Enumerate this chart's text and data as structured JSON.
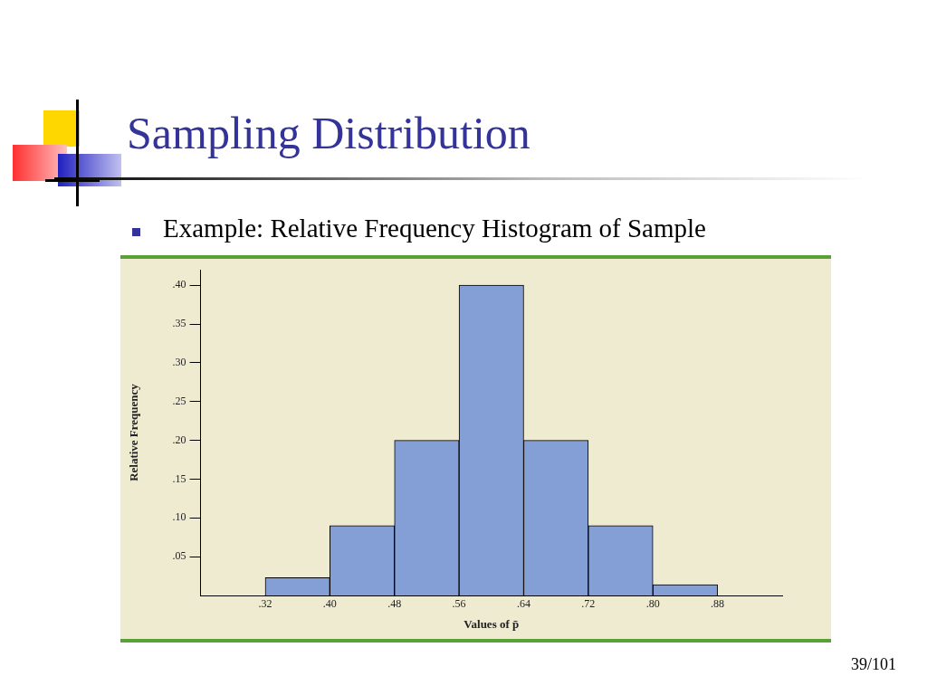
{
  "chart_data": {
    "type": "histogram",
    "title": "Sampling Distribution",
    "subtitle": "Example: Relative Frequency Histogram of Sample",
    "xlabel": "Values of p̄",
    "ylabel": "Relative Frequency",
    "bins": [
      0.32,
      0.4,
      0.48,
      0.56,
      0.64,
      0.72,
      0.8,
      0.88
    ],
    "values": [
      0.023,
      0.09,
      0.2,
      0.4,
      0.2,
      0.09,
      0.014
    ],
    "color": "#849fd6",
    "xlim": [
      0.24,
      0.96
    ],
    "ylim": [
      0,
      0.42
    ],
    "xticks": [
      {
        "value": 0.32,
        "label": ".32"
      },
      {
        "value": 0.4,
        "label": ".40"
      },
      {
        "value": 0.48,
        "label": ".48"
      },
      {
        "value": 0.56,
        "label": ".56"
      },
      {
        "value": 0.64,
        "label": ".64"
      },
      {
        "value": 0.72,
        "label": ".72"
      },
      {
        "value": 0.8,
        "label": ".80"
      },
      {
        "value": 0.88,
        "label": ".88"
      }
    ],
    "yticks": [
      {
        "value": 0.05,
        "label": ".05"
      },
      {
        "value": 0.1,
        "label": ".10"
      },
      {
        "value": 0.15,
        "label": ".15"
      },
      {
        "value": 0.2,
        "label": ".20"
      },
      {
        "value": 0.25,
        "label": ".25"
      },
      {
        "value": 0.3,
        "label": ".30"
      },
      {
        "value": 0.35,
        "label": ".35"
      },
      {
        "value": 0.4,
        "label": ".40"
      }
    ],
    "grid": false,
    "legend": false,
    "annotations": [
      "39/101"
    ]
  }
}
